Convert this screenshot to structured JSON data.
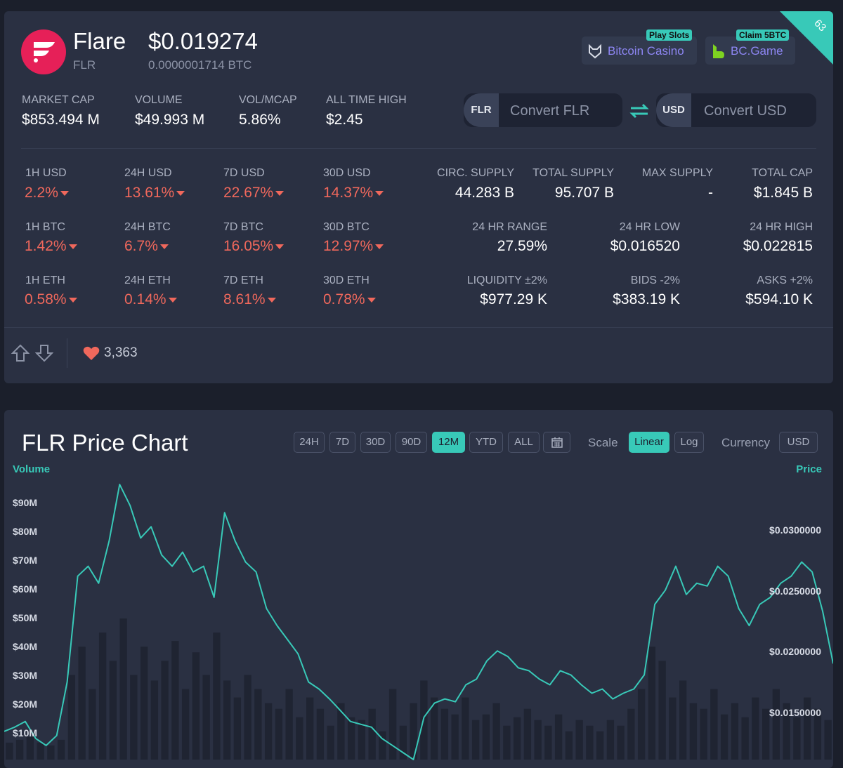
{
  "coin": {
    "name": "Flare",
    "symbol": "FLR",
    "price": "$0.019274",
    "price_btc": "0.0000001714 BTC",
    "brand_color": "#e62058"
  },
  "sponsors": [
    {
      "label": "Bitcoin Casino",
      "badge": "Play Slots",
      "icon": "wolf-icon"
    },
    {
      "label": "BC.Game",
      "badge": "Claim 5BTC",
      "icon": "bc-game-icon"
    }
  ],
  "corner_badge": "63",
  "market": [
    {
      "label": "MARKET CAP",
      "value": "$853.494 M"
    },
    {
      "label": "VOLUME",
      "value": "$49.993 M"
    },
    {
      "label": "VOL/MCAP",
      "value": "5.86%"
    },
    {
      "label": "ALL TIME HIGH",
      "value": "$2.45"
    }
  ],
  "converter": {
    "from_tag": "FLR",
    "from_placeholder": "Convert FLR",
    "to_tag": "USD",
    "to_placeholder": "Convert USD"
  },
  "changes": {
    "usd": [
      {
        "label": "1H USD",
        "value": "2.2%"
      },
      {
        "label": "24H USD",
        "value": "13.61%"
      },
      {
        "label": "7D USD",
        "value": "22.67%"
      },
      {
        "label": "30D USD",
        "value": "14.37%"
      }
    ],
    "btc": [
      {
        "label": "1H BTC",
        "value": "1.42%"
      },
      {
        "label": "24H BTC",
        "value": "6.7%"
      },
      {
        "label": "7D BTC",
        "value": "16.05%"
      },
      {
        "label": "30D BTC",
        "value": "12.97%"
      }
    ],
    "eth": [
      {
        "label": "1H ETH",
        "value": "0.58%"
      },
      {
        "label": "24H ETH",
        "value": "0.14%"
      },
      {
        "label": "7D ETH",
        "value": "8.61%"
      },
      {
        "label": "30D ETH",
        "value": "0.78%"
      }
    ]
  },
  "supply": [
    {
      "label": "CIRC. SUPPLY",
      "value": "44.283 B"
    },
    {
      "label": "TOTAL SUPPLY",
      "value": "95.707 B"
    },
    {
      "label": "MAX SUPPLY",
      "value": "-"
    },
    {
      "label": "TOTAL CAP",
      "value": "$1.845 B"
    }
  ],
  "range": [
    {
      "label": "24 HR RANGE",
      "value": "27.59%"
    },
    {
      "label": "24 HR LOW",
      "value": "$0.016520"
    },
    {
      "label": "24 HR HIGH",
      "value": "$0.022815"
    }
  ],
  "liquidity": [
    {
      "label": "LIQUIDITY ±2%",
      "value": "$977.29 K"
    },
    {
      "label": "BIDS -2%",
      "value": "$383.19 K"
    },
    {
      "label": "ASKS +2%",
      "value": "$594.10 K"
    }
  ],
  "likes": "3,363",
  "colors": {
    "negative": "#f0685c",
    "accent": "#38c9b8",
    "card": "#2a3042",
    "background": "#1b1f2b"
  },
  "chart": {
    "title": "FLR Price Chart",
    "periods": [
      "24H",
      "7D",
      "30D",
      "90D",
      "12M",
      "YTD",
      "ALL"
    ],
    "active_period": "12M",
    "scale_label": "Scale",
    "scales": [
      "Linear",
      "Log"
    ],
    "active_scale": "Linear",
    "currency_label": "Currency",
    "currency": "USD",
    "volume_axis_title": "Volume",
    "price_axis_title": "Price"
  },
  "chart_data": {
    "type": "line",
    "title": "FLR Price Chart",
    "scale": "linear",
    "series": [
      {
        "name": "Price",
        "axis": "right",
        "values": [
          0.0145,
          0.0148,
          0.0152,
          0.014,
          0.0135,
          0.0142,
          0.018,
          0.0255,
          0.0262,
          0.025,
          0.028,
          0.032,
          0.0305,
          0.0282,
          0.029,
          0.027,
          0.0262,
          0.0272,
          0.0258,
          0.0262,
          0.024,
          0.03,
          0.028,
          0.0265,
          0.0258,
          0.0232,
          0.022,
          0.021,
          0.02,
          0.018,
          0.0175,
          0.0168,
          0.016,
          0.0152,
          0.015,
          0.0148,
          0.014,
          0.0135,
          0.013,
          0.0125,
          0.0155,
          0.0165,
          0.0168,
          0.0166,
          0.0178,
          0.0182,
          0.0195,
          0.0202,
          0.0198,
          0.019,
          0.0188,
          0.0182,
          0.0178,
          0.0188,
          0.0185,
          0.0178,
          0.0172,
          0.0175,
          0.0168,
          0.0172,
          0.0175,
          0.0185,
          0.0235,
          0.0245,
          0.0262,
          0.0242,
          0.025,
          0.0248,
          0.0262,
          0.0255,
          0.0232,
          0.022,
          0.0235,
          0.024,
          0.025,
          0.0255,
          0.0265,
          0.0258,
          0.023,
          0.0193
        ]
      },
      {
        "name": "Volume",
        "axis": "left",
        "values": [
          6,
          7,
          8,
          6,
          5,
          7,
          30,
          40,
          25,
          45,
          35,
          50,
          30,
          40,
          28,
          35,
          42,
          25,
          38,
          30,
          45,
          28,
          22,
          30,
          25,
          20,
          18,
          25,
          15,
          22,
          18,
          12,
          20,
          15,
          14,
          18,
          10,
          25,
          12,
          20,
          28,
          22,
          18,
          16,
          22,
          14,
          16,
          20,
          12,
          15,
          18,
          14,
          12,
          16,
          10,
          14,
          12,
          10,
          14,
          12,
          18,
          25,
          40,
          35,
          22,
          28,
          20,
          18,
          25,
          16,
          20,
          15,
          22,
          18,
          25,
          20,
          15,
          22,
          18,
          14
        ]
      }
    ],
    "left_axis": {
      "ticks": [
        "$10M",
        "$20M",
        "$30M",
        "$40M",
        "$50M",
        "$60M",
        "$70M",
        "$80M",
        "$90M"
      ],
      "range": [
        0,
        100
      ]
    },
    "right_axis": {
      "ticks": [
        "$0.0150000",
        "$0.0200000",
        "$0.0250000",
        "$0.0300000"
      ],
      "range": [
        0.0125,
        0.0325
      ]
    },
    "grid": false,
    "legend": "none"
  }
}
